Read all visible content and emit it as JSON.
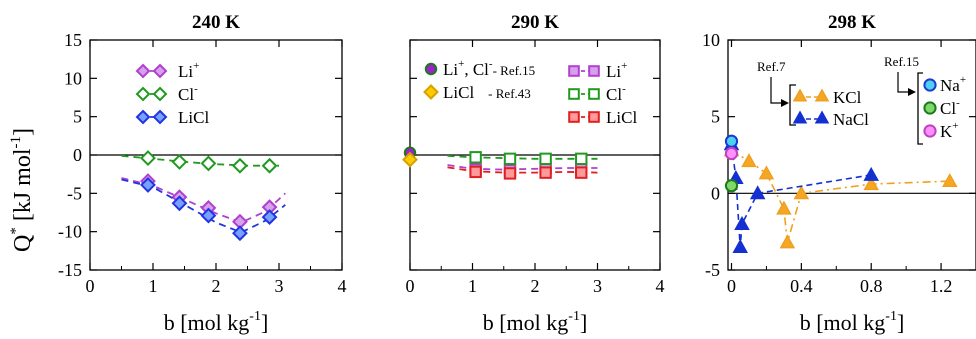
{
  "y_axis_label_main": "Q",
  "y_axis_label_sup": "*",
  "y_axis_label_unit": "[kJ mol",
  "y_axis_label_unit_sup": "-1",
  "y_axis_label_close": "]",
  "chart_data": [
    {
      "type": "scatter",
      "title": "240 K",
      "xlabel": "b [mol kg^-1]",
      "xlabel_main": "b [mol kg",
      "xlabel_sup": "-1",
      "xlabel_close": "]",
      "ylabel": "Q* [kJ mol^-1]",
      "xlim": [
        0,
        4
      ],
      "ylim": [
        -15,
        15
      ],
      "xticks": [
        0,
        1,
        2,
        3,
        4
      ],
      "yticks": [
        -15,
        -10,
        -5,
        0,
        5,
        10,
        15
      ],
      "hline": 0,
      "legend_position": "top-left",
      "series": [
        {
          "name": "Li",
          "sup": "+",
          "marker": "diamond",
          "color": "#b040d0",
          "fill": "#d8a0ec",
          "x": [
            0.92,
            1.42,
            1.88,
            2.38,
            2.85
          ],
          "y": [
            -3.4,
            -5.5,
            -6.9,
            -8.7,
            -6.8
          ],
          "fit_x": [
            0.5,
            1.0,
            1.5,
            2.0,
            2.4,
            2.8,
            3.1
          ],
          "fit_y": [
            -3.0,
            -4.0,
            -5.8,
            -7.6,
            -8.8,
            -7.3,
            -5.0
          ]
        },
        {
          "name": "Cl",
          "sup": "-",
          "marker": "diamond",
          "color": "#1f9a1f",
          "fill": "#ffffff",
          "x": [
            0.92,
            1.42,
            1.88,
            2.38,
            2.85
          ],
          "y": [
            -0.4,
            -0.9,
            -1.1,
            -1.4,
            -1.4
          ],
          "fit_x": [
            0.5,
            1.0,
            1.5,
            2.0,
            2.5,
            3.0
          ],
          "fit_y": [
            -0.1,
            -0.5,
            -0.9,
            -1.2,
            -1.4,
            -1.4
          ]
        },
        {
          "name": "LiCl",
          "sup": "",
          "marker": "diamond",
          "color": "#2035e0",
          "fill": "#7aa0ff",
          "x": [
            0.92,
            1.42,
            1.88,
            2.38,
            2.85
          ],
          "y": [
            -3.9,
            -6.3,
            -7.9,
            -10.2,
            -8.1
          ],
          "fit_x": [
            0.5,
            1.0,
            1.5,
            2.0,
            2.4,
            2.8,
            3.1
          ],
          "fit_y": [
            -3.2,
            -4.2,
            -6.5,
            -8.8,
            -10.1,
            -8.5,
            -6.5
          ]
        }
      ]
    },
    {
      "type": "scatter",
      "title": "290 K",
      "xlabel": "b [mol kg^-1]",
      "xlabel_main": "b [mol kg",
      "xlabel_sup": "-1",
      "xlabel_close": "]",
      "xlim": [
        0,
        4
      ],
      "ylim": [
        -15,
        15
      ],
      "xticks": [
        0,
        1,
        2,
        3,
        4
      ],
      "hline": 0,
      "legend_position": "top",
      "ref_series": [
        {
          "name": "Li",
          "sup": "+",
          "name2": ", Cl",
          "sup2": "-",
          "ref": "- Ref.15",
          "marker": "circle",
          "color": "#1a7a1a",
          "fill": "#a020d0",
          "x": [
            0.0
          ],
          "y": [
            0.3
          ]
        },
        {
          "name": "LiCl",
          "sup": "",
          "ref": "- Ref.43",
          "marker": "diamond",
          "color": "#d8a000",
          "fill": "#ffcc00",
          "x": [
            0.0
          ],
          "y": [
            -0.6
          ]
        }
      ],
      "series": [
        {
          "name": "Li",
          "sup": "+",
          "marker": "square",
          "color": "#b040d0",
          "fill": "#d8a0ec",
          "x": [
            1.05,
            1.6,
            2.17,
            2.74
          ],
          "y": [
            -1.9,
            -2.0,
            -1.7,
            -1.7
          ],
          "fit_x": [
            0.6,
            1.0,
            1.5,
            2.0,
            2.5,
            3.0
          ],
          "fit_y": [
            -1.3,
            -1.8,
            -1.9,
            -1.8,
            -1.7,
            -1.7
          ]
        },
        {
          "name": "Cl",
          "sup": "-",
          "marker": "square",
          "color": "#1f9a1f",
          "fill": "#ffffff",
          "x": [
            1.05,
            1.6,
            2.17,
            2.74
          ],
          "y": [
            -0.3,
            -0.5,
            -0.5,
            -0.5
          ],
          "fit_x": [
            0.6,
            1.0,
            1.5,
            2.0,
            2.5,
            3.0
          ],
          "fit_y": [
            -0.1,
            -0.3,
            -0.4,
            -0.5,
            -0.5,
            -0.5
          ]
        },
        {
          "name": "LiCl",
          "sup": "",
          "marker": "square",
          "color": "#e02020",
          "fill": "#ff9a9a",
          "x": [
            1.05,
            1.6,
            2.17,
            2.74
          ],
          "y": [
            -2.2,
            -2.4,
            -2.3,
            -2.3
          ],
          "fit_x": [
            0.6,
            1.0,
            1.5,
            2.0,
            2.5,
            3.0
          ],
          "fit_y": [
            -1.6,
            -2.1,
            -2.3,
            -2.3,
            -2.2,
            -2.3
          ]
        }
      ]
    },
    {
      "type": "line",
      "title": "298 K",
      "xlabel": "b [mol kg^-1]",
      "xlabel_main": "b [mol kg",
      "xlabel_sup": "-1",
      "xlabel_close": "]",
      "xlim": [
        -0.02,
        1.4
      ],
      "ylim": [
        -5,
        10
      ],
      "xticks": [
        0,
        0.4,
        0.8,
        1.2
      ],
      "xticklabels": [
        "0",
        "0.4",
        "0.8",
        "1.2"
      ],
      "yticks": [
        -5,
        0,
        5,
        10
      ],
      "hline": 0,
      "ref_left": "Ref.7",
      "ref_right": "Ref.15",
      "series": [
        {
          "name": "KCl",
          "marker": "triangle",
          "color": "#f0a020",
          "fill": "#f5a623",
          "x": [
            0.0,
            0.1,
            0.2,
            0.3,
            0.32,
            0.4,
            0.8,
            1.25
          ],
          "y": [
            2.8,
            2.1,
            1.3,
            -1.0,
            -3.2,
            0.0,
            0.6,
            0.8
          ]
        },
        {
          "name": "NaCl",
          "marker": "triangle",
          "color": "#1530d0",
          "fill": "#1530d0",
          "x": [
            0.0,
            0.025,
            0.05,
            0.06,
            0.15,
            0.8
          ],
          "y": [
            3.2,
            1.0,
            -3.5,
            -2.0,
            0.0,
            1.2
          ]
        }
      ],
      "ref_points": [
        {
          "name": "Na",
          "sup": "+",
          "marker": "circle",
          "color": "#1a3ad0",
          "fill": "#4fd0f0",
          "x": 0.0,
          "y": 3.4
        },
        {
          "name": "Cl",
          "sup": "-",
          "marker": "circle",
          "color": "#1a7a1a",
          "fill": "#7ed86a",
          "x": 0.0,
          "y": 0.5
        },
        {
          "name": "K",
          "sup": "+",
          "marker": "circle",
          "color": "#c040c0",
          "fill": "#ff90ff",
          "x": 0.0,
          "y": 2.6
        }
      ]
    }
  ]
}
